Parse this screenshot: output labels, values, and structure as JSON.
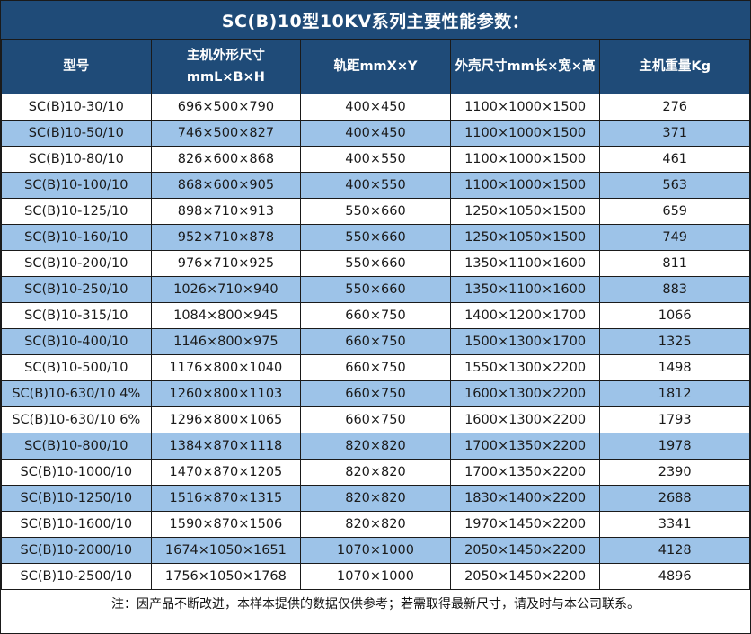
{
  "chart_data": {
    "type": "table",
    "title": "SC(B)10型10KV系列主要性能参数：",
    "column_headers": [
      [
        "型号"
      ],
      [
        "主机外形尺寸",
        "mmL×B×H"
      ],
      [
        "轨距mmX×Y"
      ],
      [
        "外壳尺寸mm长×宽×高"
      ],
      [
        "主机重量Kg"
      ]
    ],
    "rows": [
      [
        "SC(B)10-30/10",
        "696×500×790",
        "400×450",
        "1100×1000×1500",
        "276"
      ],
      [
        "SC(B)10-50/10",
        "746×500×827",
        "400×450",
        "1100×1000×1500",
        "371"
      ],
      [
        "SC(B)10-80/10",
        "826×600×868",
        "400×550",
        "1100×1000×1500",
        "461"
      ],
      [
        "SC(B)10-100/10",
        "868×600×905",
        "400×550",
        "1100×1000×1500",
        "563"
      ],
      [
        "SC(B)10-125/10",
        "898×710×913",
        "550×660",
        "1250×1050×1500",
        "659"
      ],
      [
        "SC(B)10-160/10",
        "952×710×878",
        "550×660",
        "1250×1050×1500",
        "749"
      ],
      [
        "SC(B)10-200/10",
        "976×710×925",
        "550×660",
        "1350×1100×1600",
        "811"
      ],
      [
        "SC(B)10-250/10",
        "1026×710×940",
        "550×660",
        "1350×1100×1600",
        "883"
      ],
      [
        "SC(B)10-315/10",
        "1084×800×945",
        "660×750",
        "1400×1200×1700",
        "1066"
      ],
      [
        "SC(B)10-400/10",
        "1146×800×975",
        "660×750",
        "1500×1300×1700",
        "1325"
      ],
      [
        "SC(B)10-500/10",
        "1176×800×1040",
        "660×750",
        "1550×1300×2200",
        "1498"
      ],
      [
        "SC(B)10-630/10 4%",
        "1260×800×1103",
        "660×750",
        "1600×1300×2200",
        "1812"
      ],
      [
        "SC(B)10-630/10 6%",
        "1296×800×1065",
        "660×750",
        "1600×1300×2200",
        "1793"
      ],
      [
        "SC(B)10-800/10",
        "1384×870×1118",
        "820×820",
        "1700×1350×2200",
        "1978"
      ],
      [
        "SC(B)10-1000/10",
        "1470×870×1205",
        "820×820",
        "1700×1350×2200",
        "2390"
      ],
      [
        "SC(B)10-1250/10",
        "1516×870×1315",
        "820×820",
        "1830×1400×2200",
        "2688"
      ],
      [
        "SC(B)10-1600/10",
        "1590×870×1506",
        "820×820",
        "1970×1450×2200",
        "3341"
      ],
      [
        "SC(B)10-2000/10",
        "1674×1050×1651",
        "1070×1000",
        "2050×1450×2200",
        "4128"
      ],
      [
        "SC(B)10-2500/10",
        "1756×1050×1768",
        "1070×1000",
        "2050×1450×2200",
        "4896"
      ]
    ],
    "note": "注：因产品不断改进，本样本提供的数据仅供参考；若需取得最新尺寸，请及时与本公司联系。",
    "layout": {
      "column_width_percent": [
        20,
        20,
        20,
        20,
        20
      ],
      "stripe_pattern": "even rows shaded"
    }
  },
  "colors": {
    "header_bg": "#1F4B78",
    "stripe_bg": "#9DC3E8",
    "row_bg": "#FFFFFF",
    "border": "#1a1a1a",
    "header_text": "#FFFFFF",
    "body_text": "#1a1a1a"
  }
}
